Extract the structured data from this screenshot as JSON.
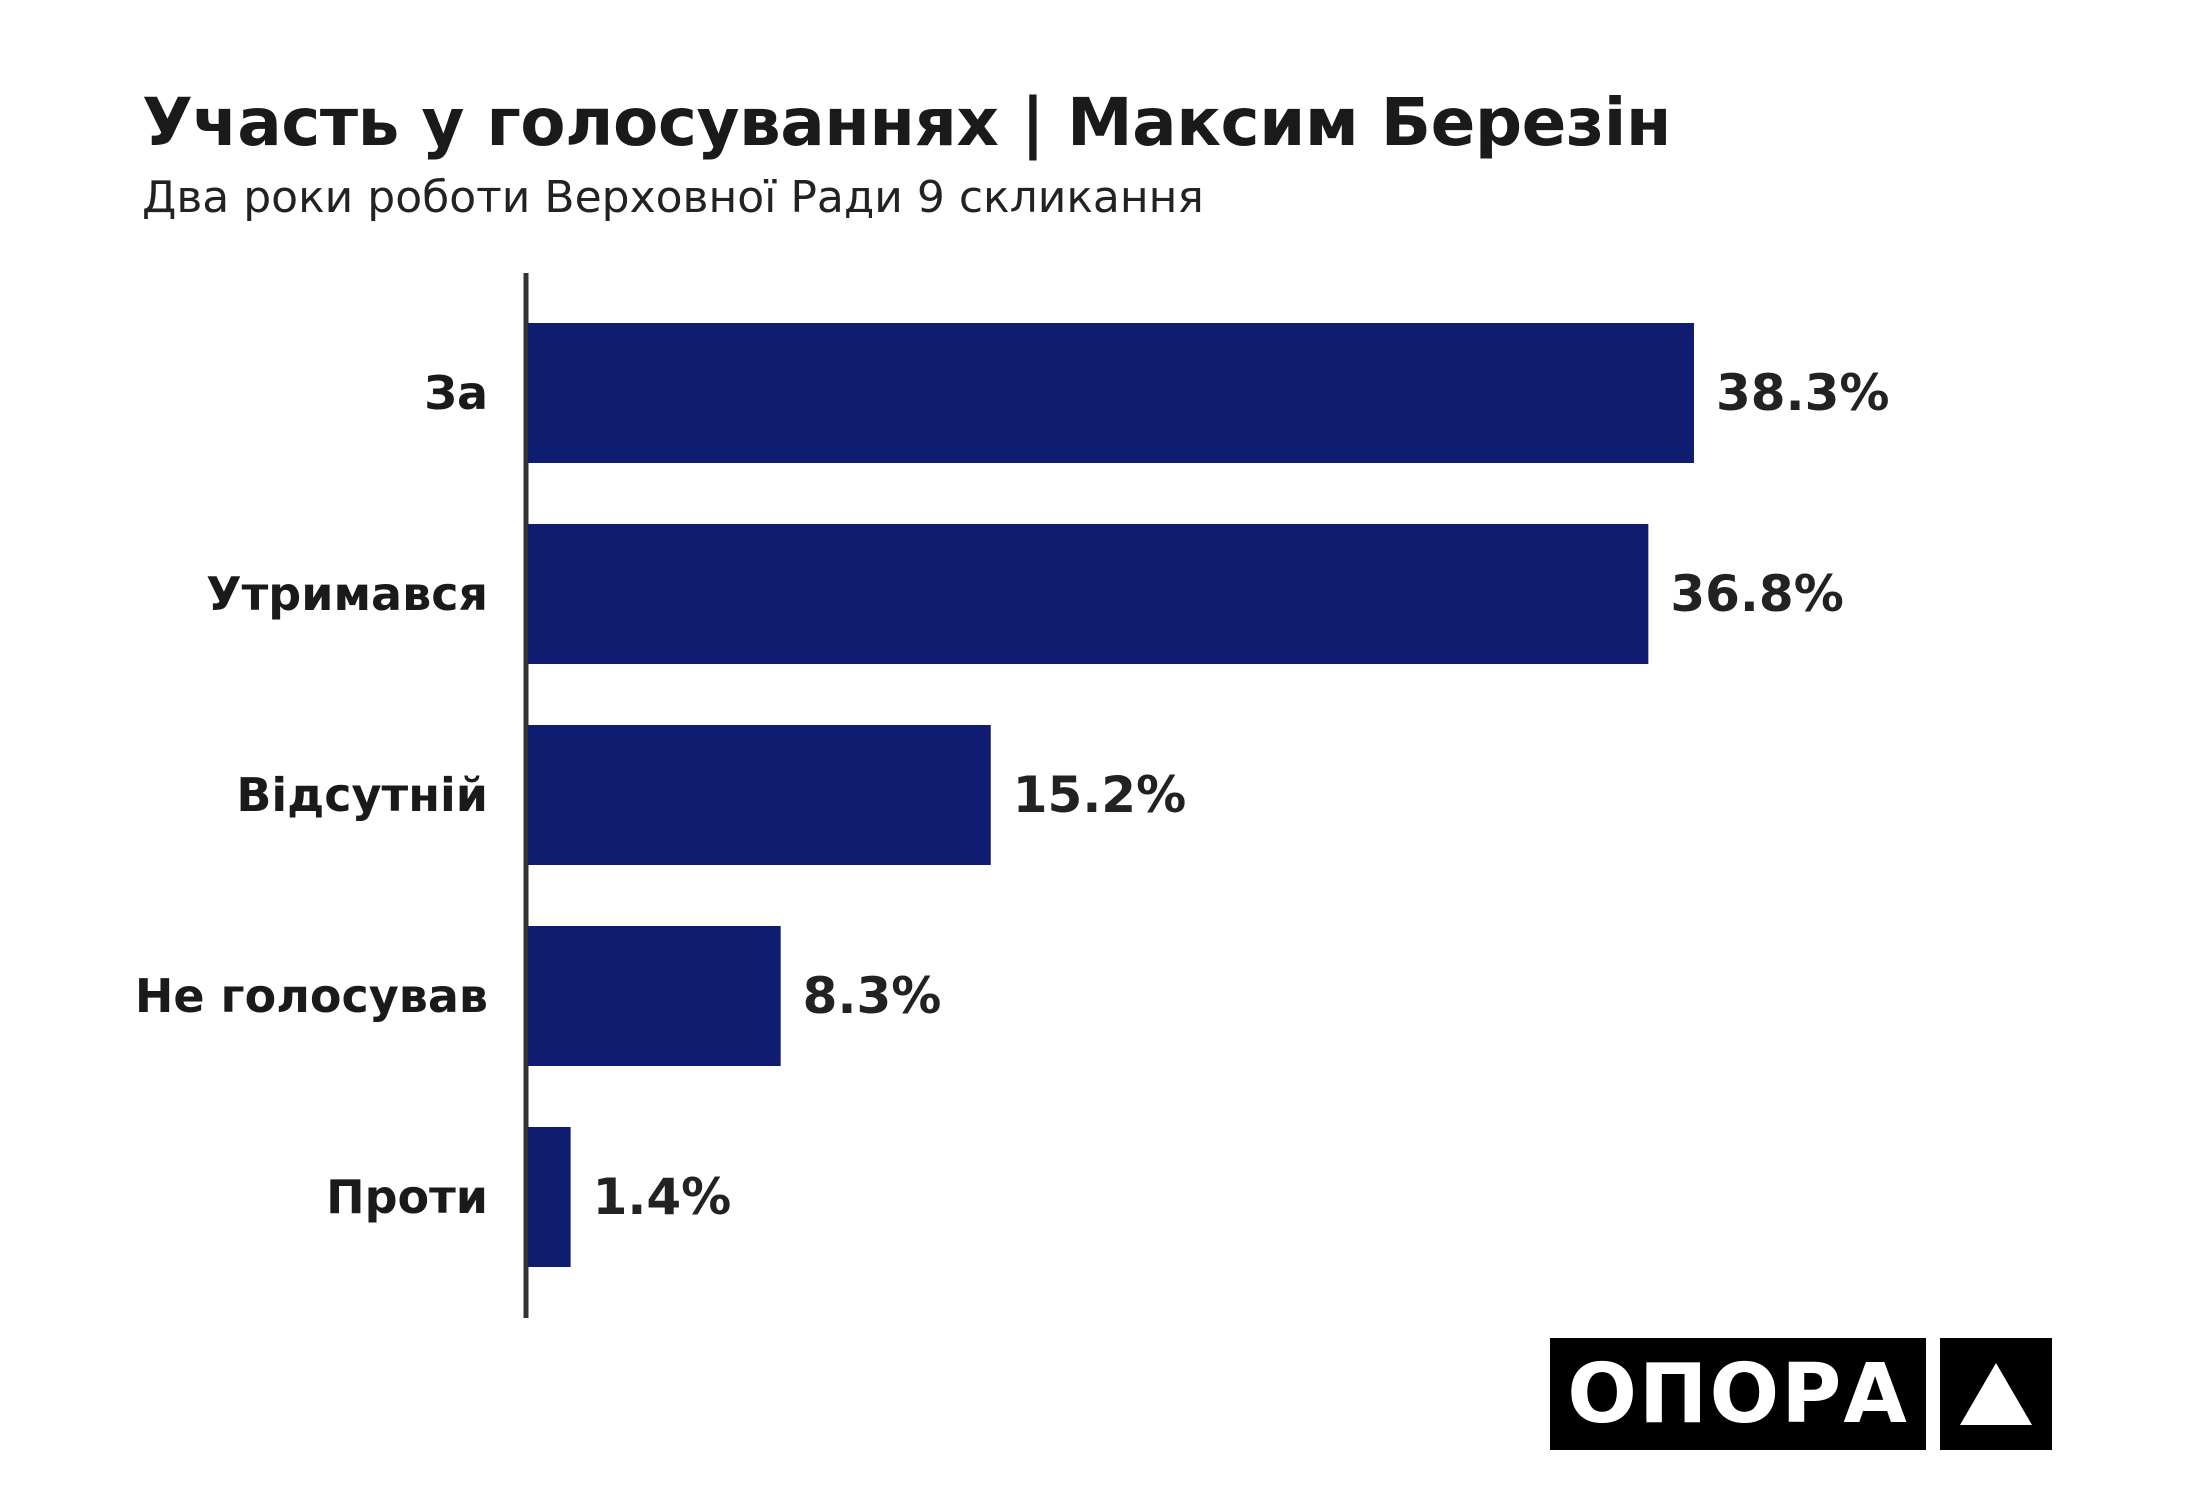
{
  "chart_data": {
    "type": "bar",
    "orientation": "horizontal",
    "title": "Участь у голосуваннях | Максим Березін",
    "subtitle": "Два роки роботи Верховної Ради 9 скликання",
    "categories": [
      "За",
      "Утримався",
      "Відсутній",
      "Не голосував",
      "Проти"
    ],
    "values": [
      38.3,
      36.8,
      15.2,
      8.3,
      1.4
    ],
    "value_labels": [
      "38.3%",
      "36.8%",
      "15.2%",
      "8.3%",
      "1.4%"
    ],
    "unit": "%",
    "xlabel": "",
    "ylabel": "",
    "xlim": [
      0,
      38.3
    ],
    "grid": false,
    "legend": "none",
    "bar_color": "#0f1c6f",
    "axis_color": "#333333"
  },
  "logo": {
    "text": "ОПОРА",
    "symbol": "▲",
    "icon": "triangle-icon"
  }
}
